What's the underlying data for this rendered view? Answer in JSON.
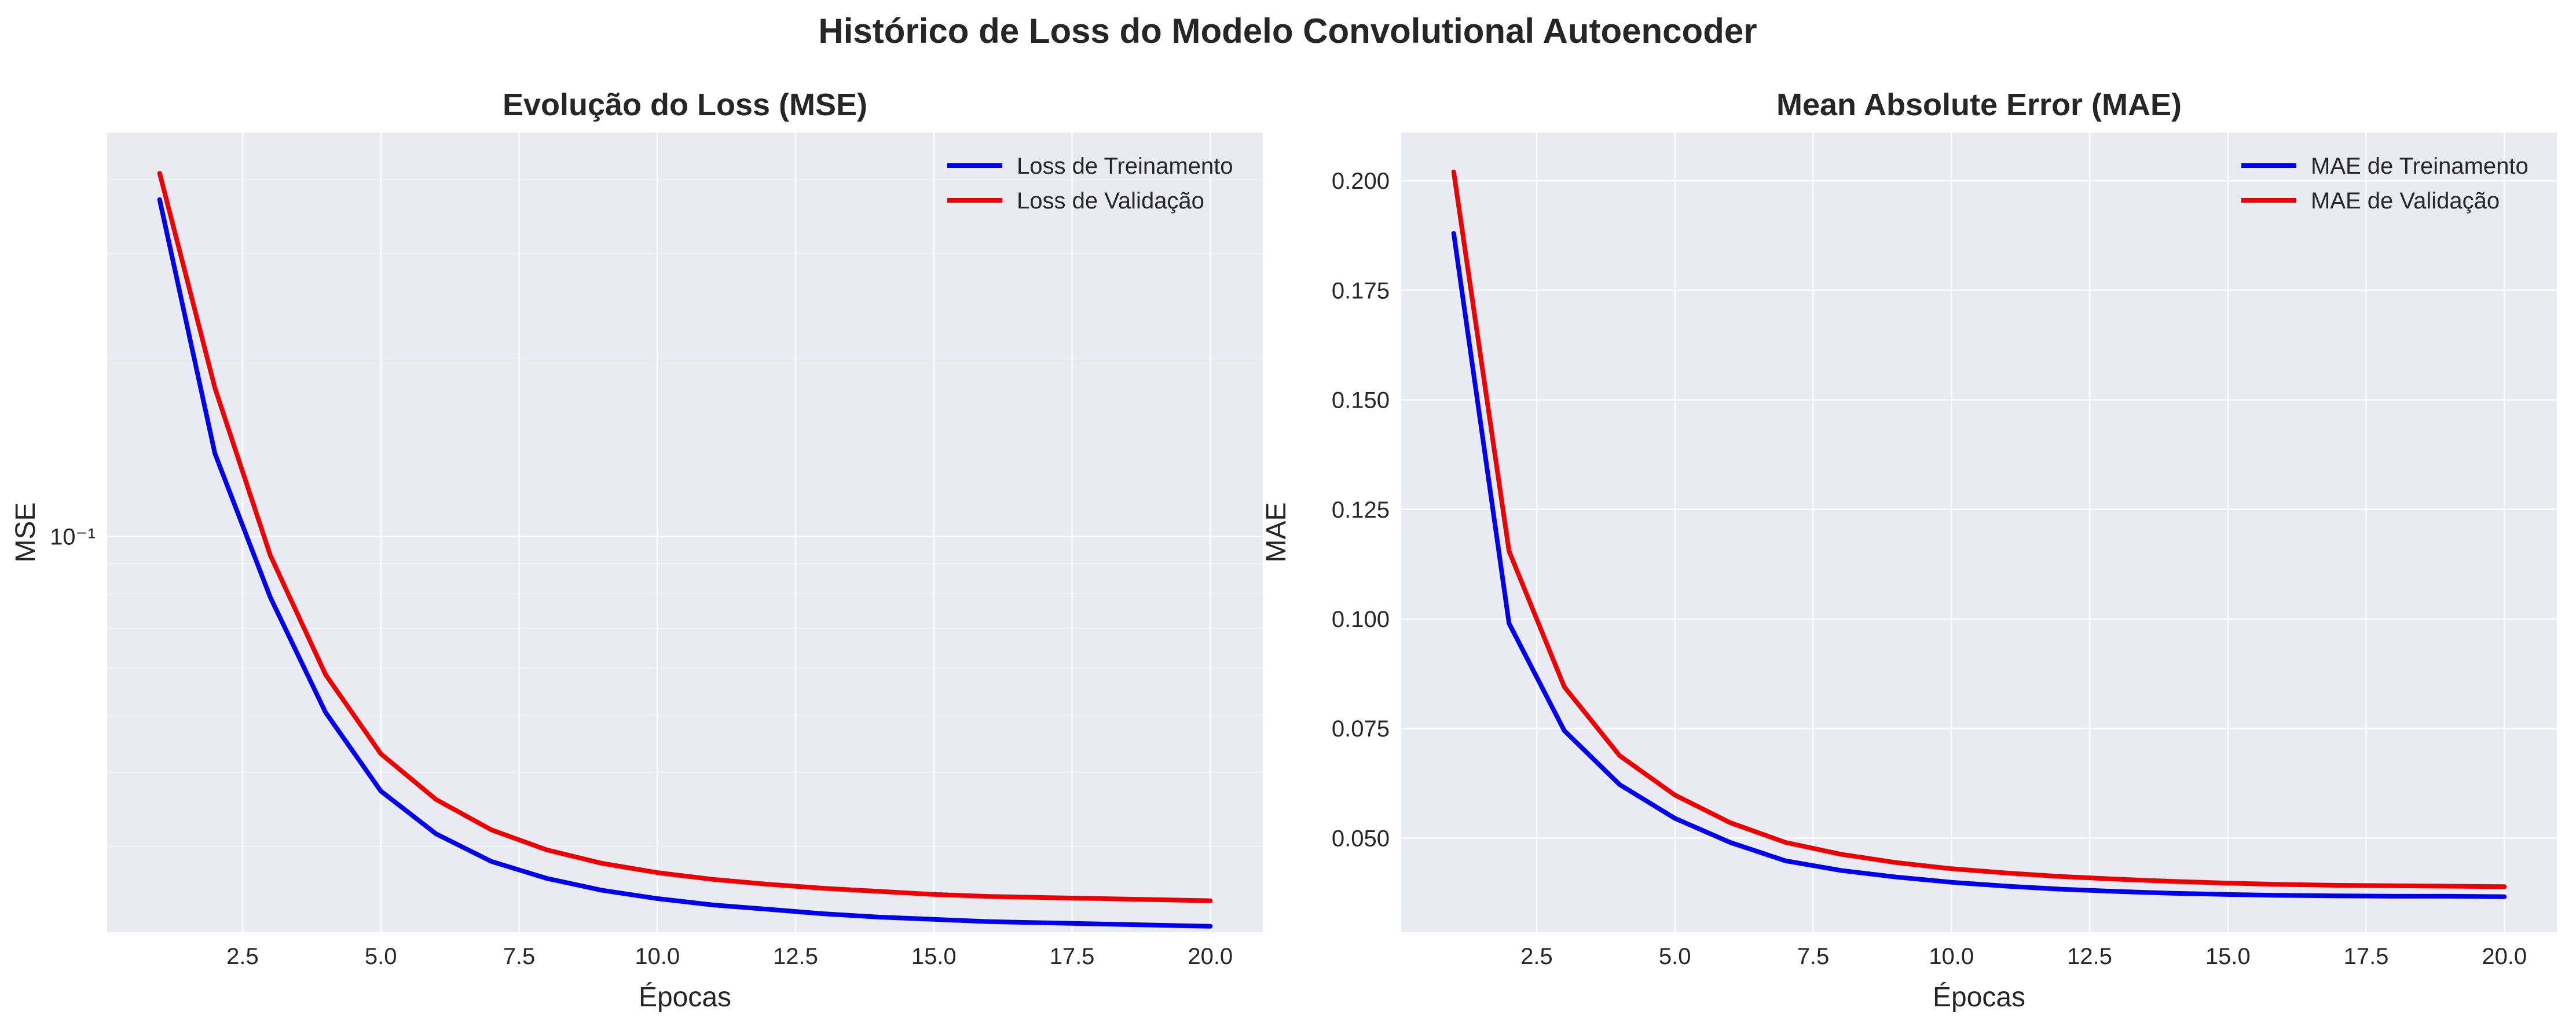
{
  "figure": {
    "suptitle": "Histórico de Loss do Modelo Convolutional Autoencoder"
  },
  "chart_data": [
    {
      "type": "line",
      "title": "Evolução do Loss (MSE)",
      "xlabel": "Épocas",
      "ylabel": "MSE",
      "yscale": "log",
      "xlim": [
        0.05,
        20.95
      ],
      "ylim": [
        0.0215,
        0.48
      ],
      "x_ticks": [
        2.5,
        5.0,
        7.5,
        10.0,
        12.5,
        15.0,
        17.5,
        20.0
      ],
      "x_tick_labels": [
        "2.5",
        "5.0",
        "7.5",
        "10.0",
        "12.5",
        "15.0",
        "17.5",
        "20.0"
      ],
      "y_ticks": [
        0.1
      ],
      "y_tick_labels": [
        "10⁻¹"
      ],
      "grid": true,
      "legend": "top-right",
      "x": [
        1,
        2,
        3,
        4,
        5,
        6,
        7,
        8,
        9,
        10,
        11,
        12,
        13,
        14,
        15,
        16,
        17,
        18,
        19,
        20
      ],
      "series": [
        {
          "name": "Loss de Treinamento",
          "color": "#0000ee",
          "values": [
            0.37,
            0.138,
            0.079,
            0.0505,
            0.0372,
            0.0315,
            0.0283,
            0.0265,
            0.0253,
            0.0245,
            0.0239,
            0.0235,
            0.0231,
            0.0228,
            0.0226,
            0.0224,
            0.0223,
            0.0222,
            0.0221,
            0.022
          ]
        },
        {
          "name": "Loss de Validação",
          "color": "#ee0000",
          "values": [
            0.41,
            0.178,
            0.093,
            0.0585,
            0.043,
            0.036,
            0.032,
            0.0296,
            0.0281,
            0.0271,
            0.0264,
            0.0259,
            0.0255,
            0.0252,
            0.0249,
            0.0247,
            0.0246,
            0.0245,
            0.0244,
            0.0243
          ]
        }
      ]
    },
    {
      "type": "line",
      "title": "Mean Absolute Error (MAE)",
      "xlabel": "Épocas",
      "ylabel": "MAE",
      "yscale": "linear",
      "xlim": [
        0.05,
        20.95
      ],
      "ylim": [
        0.0285,
        0.211
      ],
      "x_ticks": [
        2.5,
        5.0,
        7.5,
        10.0,
        12.5,
        15.0,
        17.5,
        20.0
      ],
      "x_tick_labels": [
        "2.5",
        "5.0",
        "7.5",
        "10.0",
        "12.5",
        "15.0",
        "17.5",
        "20.0"
      ],
      "y_ticks": [
        0.05,
        0.075,
        0.1,
        0.125,
        0.15,
        0.175,
        0.2
      ],
      "y_tick_labels": [
        "0.050",
        "0.075",
        "0.100",
        "0.125",
        "0.150",
        "0.175",
        "0.200"
      ],
      "grid": true,
      "legend": "top-right",
      "x": [
        1,
        2,
        3,
        4,
        5,
        6,
        7,
        8,
        9,
        10,
        11,
        12,
        13,
        14,
        15,
        16,
        17,
        18,
        19,
        20
      ],
      "series": [
        {
          "name": "MAE de Treinamento",
          "color": "#0000ee",
          "values": [
            0.188,
            0.099,
            0.0745,
            0.0622,
            0.0545,
            0.049,
            0.0448,
            0.0426,
            0.0411,
            0.0399,
            0.039,
            0.0383,
            0.0378,
            0.0374,
            0.0371,
            0.0369,
            0.0368,
            0.0367,
            0.0367,
            0.0366
          ]
        },
        {
          "name": "MAE de Validação",
          "color": "#ee0000",
          "values": [
            0.202,
            0.1155,
            0.0845,
            0.0688,
            0.0598,
            0.0535,
            0.049,
            0.0463,
            0.0444,
            0.043,
            0.042,
            0.0412,
            0.0406,
            0.0401,
            0.0397,
            0.0394,
            0.0392,
            0.0391,
            0.039,
            0.0389
          ]
        }
      ]
    }
  ]
}
